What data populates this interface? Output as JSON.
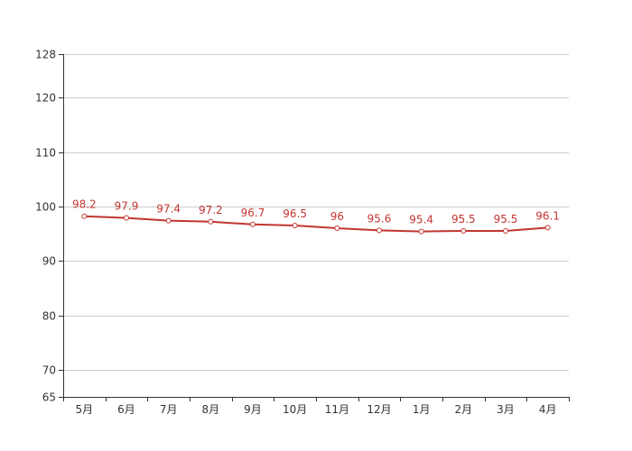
{
  "chart_data": {
    "type": "line",
    "title": "",
    "xlabel": "",
    "ylabel": "",
    "categories": [
      "5月",
      "6月",
      "7月",
      "8月",
      "9月",
      "10月",
      "11月",
      "12月",
      "1月",
      "2月",
      "3月",
      "4月"
    ],
    "series": [
      {
        "values": [
          98.2,
          97.9,
          97.4,
          97.2,
          96.7,
          96.5,
          96,
          95.6,
          95.4,
          95.5,
          95.5,
          96.1
        ],
        "labels": [
          "98.2",
          "97.9",
          "97.4",
          "97.2",
          "96.7",
          "96.5",
          "96",
          "95.6",
          "95.4",
          "95.5",
          "95.5",
          "96.1"
        ],
        "color": "#c23531"
      }
    ],
    "ylim": [
      65,
      128
    ],
    "yticks": [
      65,
      70,
      80,
      90,
      100,
      110,
      120,
      128
    ],
    "grid": true,
    "legend": "none"
  }
}
